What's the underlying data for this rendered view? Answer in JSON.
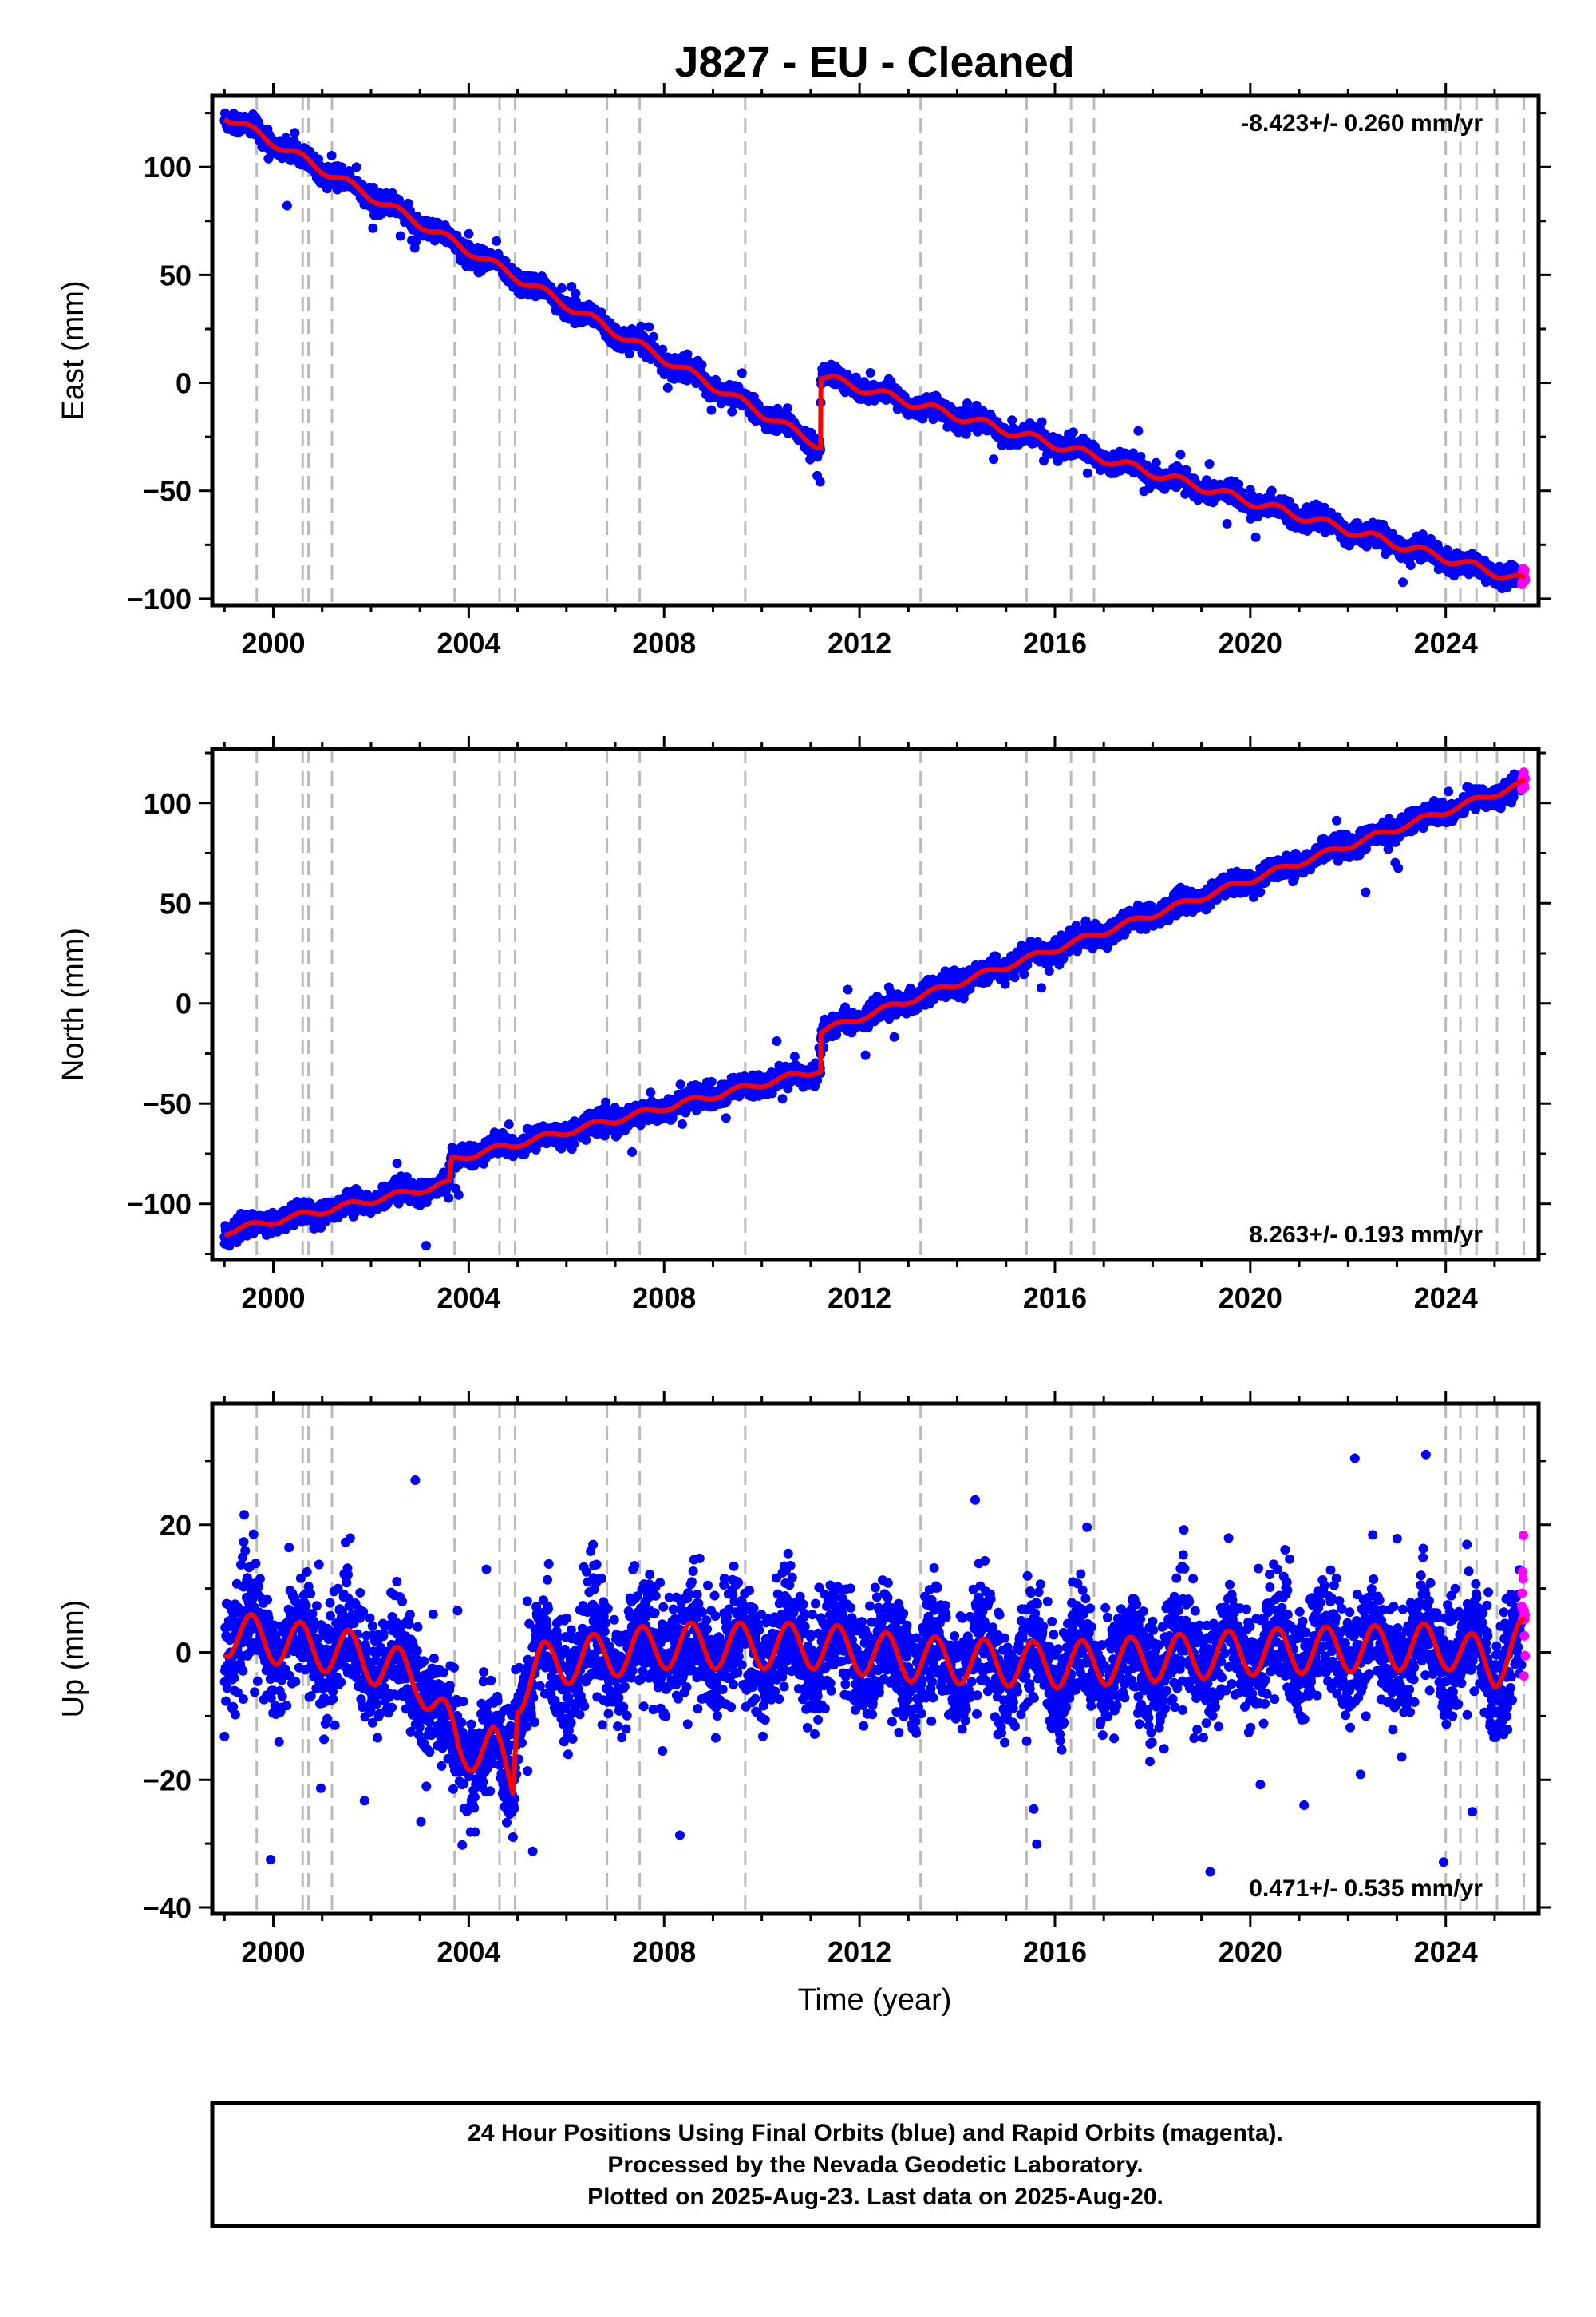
{
  "title": "J827  - EU - Cleaned",
  "colors": {
    "final_orbits": "#0000ff",
    "rapid_orbits": "#ff00ff",
    "model": "#ff0000",
    "dashed_lines": "#bbbbbb"
  },
  "chart_data": [
    {
      "type": "scatter",
      "name": "east",
      "ylabel": "East (mm)",
      "xlim": [
        1998.75,
        2025.9
      ],
      "ylim": [
        -103,
        133
      ],
      "xticks": [
        2000,
        2004,
        2008,
        2012,
        2016,
        2020,
        2024
      ],
      "yticks": [
        -100,
        -50,
        0,
        50,
        100
      ],
      "rate_text": "-8.423+/- 0.260 mm/yr",
      "rate_position": "top-right",
      "final_end": 2025.55,
      "model": {
        "trend": [
          [
            1999.0,
            124
          ],
          [
            2011.2,
            -29
          ],
          [
            2011.21,
            3
          ],
          [
            2025.63,
            -92
          ]
        ],
        "seasonal_amplitude": 2.0,
        "noise": 2.2
      }
    },
    {
      "type": "scatter",
      "name": "north",
      "ylabel": "North (mm)",
      "xlim": [
        1998.75,
        2025.9
      ],
      "ylim": [
        -128,
        127
      ],
      "xticks": [
        2000,
        2004,
        2008,
        2012,
        2016,
        2020,
        2024
      ],
      "yticks": [
        -100,
        -50,
        0,
        50,
        100
      ],
      "rate_text": "8.263+/- 0.193 mm/yr",
      "rate_position": "bottom-right",
      "final_end": 2025.55,
      "model": {
        "trend": [
          [
            1999.0,
            -114
          ],
          [
            2003.6,
            -90
          ],
          [
            2003.65,
            -78
          ],
          [
            2011.2,
            -33
          ],
          [
            2011.21,
            -14
          ],
          [
            2025.63,
            110
          ]
        ],
        "seasonal_amplitude": 1.6,
        "noise": 2.6
      }
    },
    {
      "type": "scatter",
      "name": "up",
      "ylabel": "Up (mm)",
      "xlabel": "Time (year)",
      "xlim": [
        1998.75,
        2025.9
      ],
      "ylim": [
        -41,
        39
      ],
      "xticks": [
        2000,
        2004,
        2008,
        2012,
        2016,
        2020,
        2024
      ],
      "yticks": [
        -40,
        -20,
        0,
        20
      ],
      "rate_text": "0.471+/- 0.535 mm/yr",
      "rate_position": "bottom-right",
      "final_end": 2025.55,
      "model": {
        "trend": [
          [
            1999.0,
            3
          ],
          [
            2001.5,
            0
          ],
          [
            2003.0,
            -4
          ],
          [
            2003.8,
            -15
          ],
          [
            2004.5,
            -15
          ],
          [
            2004.9,
            -20
          ],
          [
            2005.0,
            -6
          ],
          [
            2005.5,
            -2
          ],
          [
            2008.0,
            1
          ],
          [
            2011.2,
            1
          ],
          [
            2013.0,
            -1
          ],
          [
            2016.0,
            -2
          ],
          [
            2020.0,
            0
          ],
          [
            2024.0,
            1
          ],
          [
            2025.0,
            -2
          ],
          [
            2025.63,
            2
          ]
        ],
        "seasonal_amplitude": 3.6,
        "noise": 4.4
      }
    }
  ],
  "event_lines": [
    1999.66,
    2000.6,
    2000.72,
    2001.2,
    2003.71,
    2004.63,
    2004.95,
    2006.83,
    2007.5,
    2009.66,
    2013.25,
    2015.42,
    2016.33,
    2016.8,
    2024.0,
    2024.3,
    2024.63,
    2025.05,
    2025.6
  ],
  "footer": {
    "line1": "24 Hour Positions Using Final Orbits (blue) and Rapid Orbits (magenta).",
    "line2": "Processed by the Nevada Geodetic Laboratory.",
    "line3": "Plotted on 2025-Aug-23. Last data on 2025-Aug-20."
  }
}
